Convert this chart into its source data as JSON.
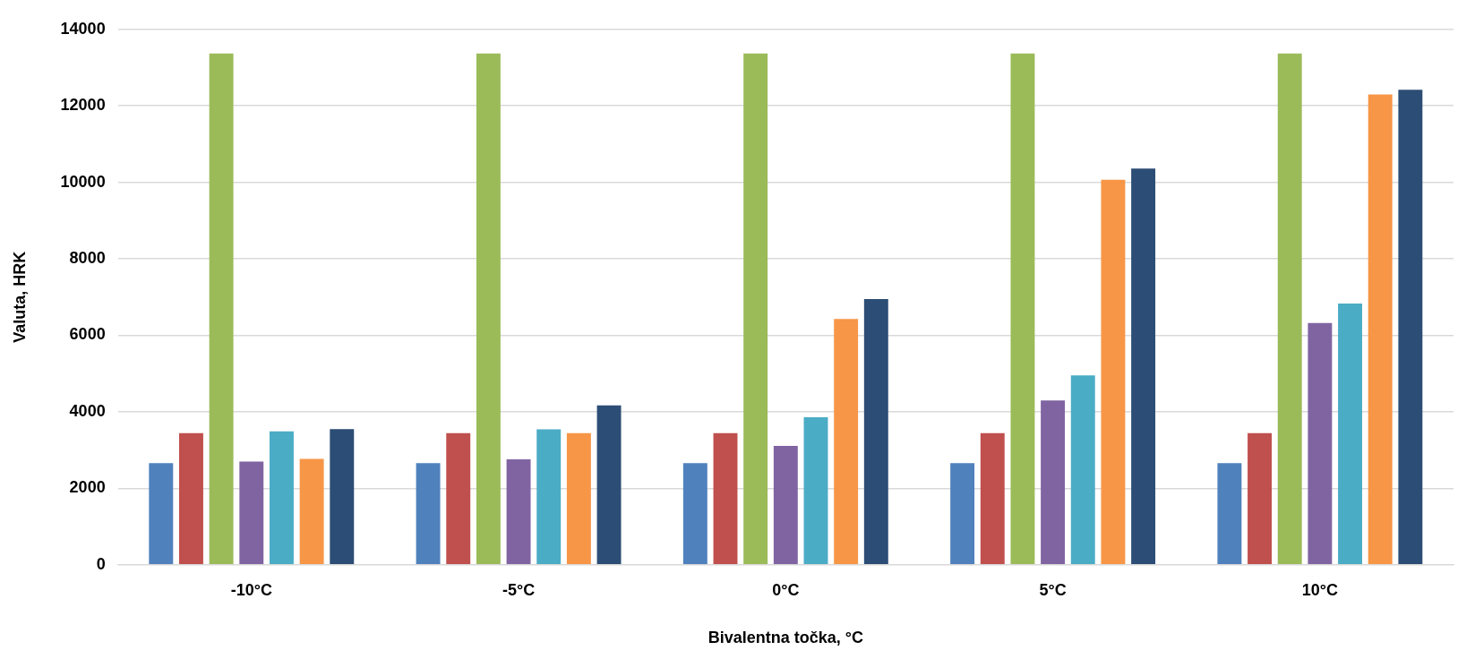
{
  "chart_data": {
    "type": "bar",
    "xlabel": "Bivalentna točka, °C",
    "ylabel": "Valuta, HRK",
    "categories": [
      "-10°C",
      "-5°C",
      "0°C",
      "5°C",
      "10°C"
    ],
    "series": [
      {
        "color": "#4f81bd",
        "values": [
          2660,
          2660,
          2660,
          2660,
          2660
        ]
      },
      {
        "color": "#c0504d",
        "values": [
          3440,
          3440,
          3440,
          3440,
          3440
        ]
      },
      {
        "color": "#9bbb59",
        "values": [
          13370,
          13370,
          13370,
          13370,
          13370
        ]
      },
      {
        "color": "#8064a2",
        "values": [
          2700,
          2760,
          3110,
          4300,
          6320
        ]
      },
      {
        "color": "#4bacc6",
        "values": [
          3490,
          3540,
          3860,
          4950,
          6830
        ]
      },
      {
        "color": "#f79646",
        "values": [
          2770,
          3440,
          6430,
          10070,
          12300
        ]
      },
      {
        "color": "#2c4d75",
        "values": [
          3550,
          4170,
          6950,
          10360,
          12420
        ]
      }
    ],
    "ylim": [
      0,
      14000
    ],
    "yticks": [
      0,
      2000,
      4000,
      6000,
      8000,
      10000,
      12000,
      14000
    ],
    "grid": "y",
    "legend": false
  }
}
